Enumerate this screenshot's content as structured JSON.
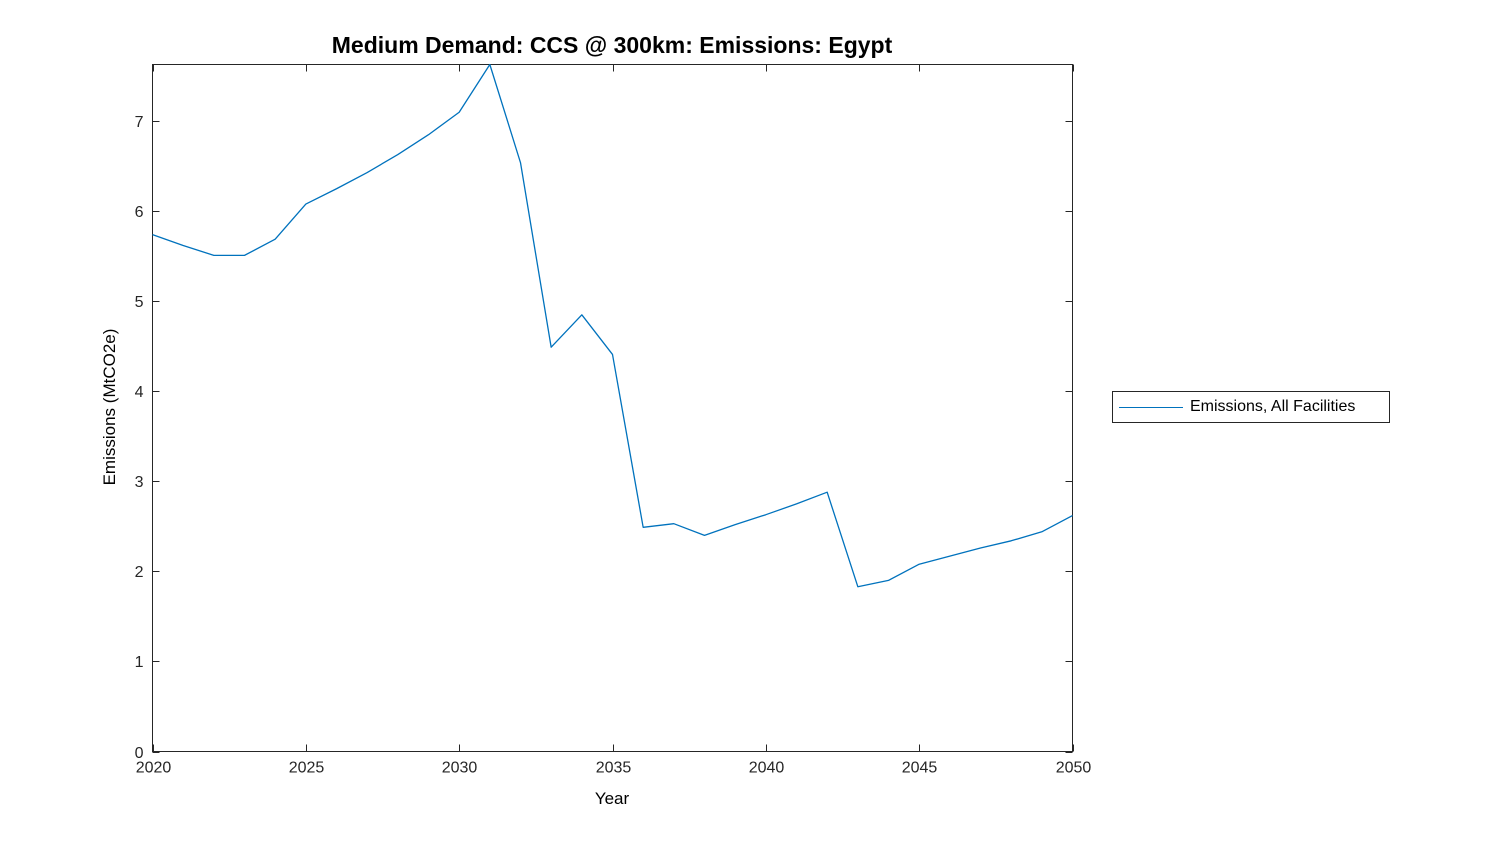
{
  "chart_data": {
    "type": "line",
    "title": "Medium Demand: CCS @ 300km: Emissions: Egypt",
    "xlabel": "Year",
    "ylabel": "Emissions (MtCO2e)",
    "x": [
      2020,
      2021,
      2022,
      2023,
      2024,
      2025,
      2026,
      2027,
      2028,
      2029,
      2030,
      2031,
      2032,
      2033,
      2034,
      2035,
      2036,
      2037,
      2038,
      2039,
      2040,
      2041,
      2042,
      2043,
      2044,
      2045,
      2046,
      2047,
      2048,
      2049,
      2050
    ],
    "series": [
      {
        "name": "Emissions, All Facilities",
        "color": "#0072BD",
        "values": [
          5.74,
          5.62,
          5.51,
          5.51,
          5.69,
          6.08,
          6.25,
          6.43,
          6.63,
          6.85,
          7.1,
          7.63,
          6.54,
          4.49,
          4.85,
          4.41,
          2.49,
          2.53,
          2.4,
          2.52,
          2.63,
          2.75,
          2.88,
          1.83,
          1.9,
          2.08,
          2.17,
          2.26,
          2.34,
          2.44,
          2.62
        ]
      }
    ],
    "xlim": [
      2020,
      2050
    ],
    "ylim": [
      0,
      7.63
    ],
    "xticks": [
      2020,
      2025,
      2030,
      2035,
      2040,
      2045,
      2050
    ],
    "yticks": [
      0,
      1,
      2,
      3,
      4,
      5,
      6,
      7
    ],
    "grid": false,
    "box": true,
    "tick_direction": "in",
    "legend_position": "right-outside",
    "axis_color": "#262626",
    "background_color": "#ffffff"
  }
}
